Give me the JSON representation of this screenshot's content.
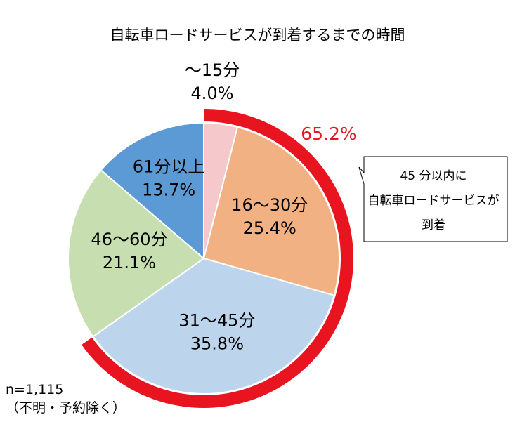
{
  "chart_data": {
    "type": "pie",
    "title": "自転車ロードサービスが到着するまでの時間",
    "start_angle_deg": 0,
    "direction": "clockwise",
    "slices": [
      {
        "label": "～15分",
        "value": 4.0,
        "value_label": "4.0%",
        "color": "#f5c8cc"
      },
      {
        "label": "16～30分",
        "value": 25.4,
        "value_label": "25.4%",
        "color": "#f2b182"
      },
      {
        "label": "31～45分",
        "value": 35.8,
        "value_label": "35.8%",
        "color": "#bdd5ec"
      },
      {
        "label": "46～60分",
        "value": 21.1,
        "value_label": "21.1%",
        "color": "#c7dfb0"
      },
      {
        "label": "61分以上",
        "value": 13.7,
        "value_label": "13.7%",
        "color": "#5b9ad5"
      }
    ],
    "highlight_arc": {
      "value": 65.2,
      "value_label": "65.2%",
      "color": "#e8141f",
      "covers": [
        "～15分",
        "16～30分",
        "31～45分"
      ]
    },
    "callout_lines": [
      "45 分以内に",
      "自転車ロードサービスが",
      "到着"
    ],
    "sample_note": [
      "n=1,115",
      "（不明・予約除く）"
    ]
  }
}
